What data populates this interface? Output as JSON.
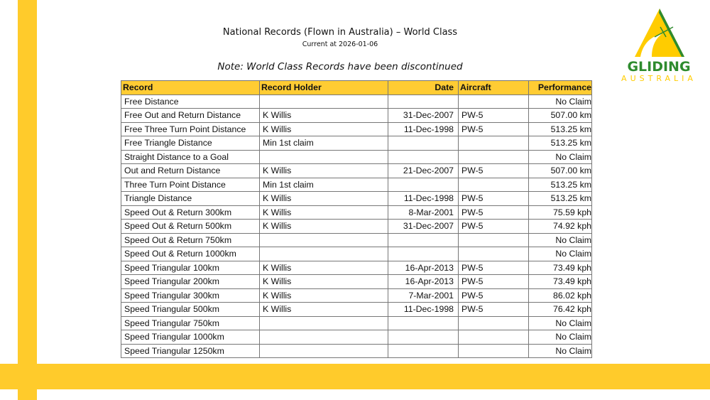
{
  "header": {
    "title": "National Records (Flown in Australia) – World Class",
    "subtitle": "Current at 2026-01-06",
    "note": "Note: World Class Records have been discontinued"
  },
  "logo": {
    "line1": "GLIDING",
    "line2": "AUSTRALIA"
  },
  "colors": {
    "accent": "#FFCB2B",
    "logo_green": "#2E8B2E"
  },
  "table": {
    "columns": [
      "Record",
      "Record Holder",
      "Date",
      "Aircraft",
      "Performance"
    ],
    "rows": [
      [
        "Free Distance",
        "",
        "",
        "",
        "No Claim"
      ],
      [
        "Free Out and Return Distance",
        "K Willis",
        "31-Dec-2007",
        "PW-5",
        "507.00 km"
      ],
      [
        "Free Three Turn Point Distance",
        "K Willis",
        "11-Dec-1998",
        "PW-5",
        "513.25 km"
      ],
      [
        "Free Triangle Distance",
        "Min 1st claim",
        "",
        "",
        "513.25 km"
      ],
      [
        "Straight Distance to a Goal",
        "",
        "",
        "",
        "No Claim"
      ],
      [
        "Out and Return Distance",
        "K Willis",
        "21-Dec-2007",
        "PW-5",
        "507.00 km"
      ],
      [
        "Three Turn Point Distance",
        "Min 1st claim",
        "",
        "",
        "513.25 km"
      ],
      [
        "Triangle Distance",
        "K Willis",
        "11-Dec-1998",
        "PW-5",
        "513.25 km"
      ],
      [
        "Speed Out & Return 300km",
        "K Willis",
        "8-Mar-2001",
        "PW-5",
        "75.59 kph"
      ],
      [
        "Speed Out & Return 500km",
        "K Willis",
        "31-Dec-2007",
        "PW-5",
        "74.92 kph"
      ],
      [
        "Speed Out & Return 750km",
        "",
        "",
        "",
        "No Claim"
      ],
      [
        "Speed Out & Return 1000km",
        "",
        "",
        "",
        "No Claim"
      ],
      [
        "Speed Triangular 100km",
        "K Willis",
        "16-Apr-2013",
        "PW-5",
        "73.49 kph"
      ],
      [
        "Speed Triangular 200km",
        "K Willis",
        "16-Apr-2013",
        "PW-5",
        "73.49 kph"
      ],
      [
        "Speed Triangular 300km",
        "K Willis",
        "7-Mar-2001",
        "PW-5",
        "86.02 kph"
      ],
      [
        "Speed Triangular 500km",
        "K Willis",
        "11-Dec-1998",
        "PW-5",
        "76.42 kph"
      ],
      [
        "Speed Triangular 750km",
        "",
        "",
        "",
        "No Claim"
      ],
      [
        "Speed Triangular 1000km",
        "",
        "",
        "",
        "No Claim"
      ],
      [
        "Speed Triangular 1250km",
        "",
        "",
        "",
        "No Claim"
      ]
    ]
  }
}
